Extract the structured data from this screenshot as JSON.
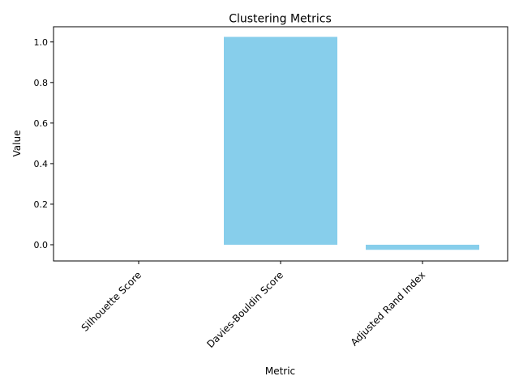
{
  "chart_data": {
    "type": "bar",
    "title": "Clustering Metrics",
    "xlabel": "Metric",
    "ylabel": "Value",
    "categories": [
      "Silhouette Score",
      "Davies-Bouldin Score",
      "Adjusted Rand Index"
    ],
    "values": [
      0.0,
      1.025,
      -0.025
    ],
    "ylim": [
      -0.08,
      1.075
    ],
    "yticks": [
      "0.0",
      "0.2",
      "0.4",
      "0.6",
      "0.8",
      "1.0"
    ],
    "grid": false,
    "bar_color": "#87ceeb"
  }
}
